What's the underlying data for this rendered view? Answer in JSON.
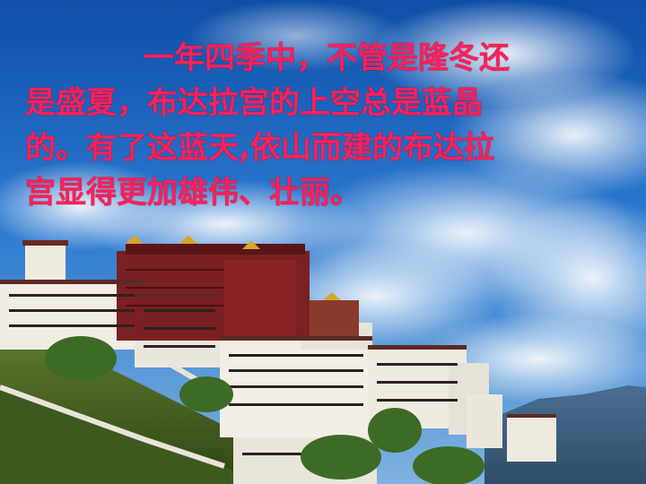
{
  "slide": {
    "caption_lines": [
      "一年四季中，不管是隆冬还",
      "是盛夏，布达拉宫的上空总是蓝晶",
      "的。有了这蓝天,依山而建的布达拉",
      "宫显得更加雄伟、壮丽。"
    ],
    "caption_color": "#ff1f5a",
    "photo_subject": "potala-palace-blue-sky"
  }
}
